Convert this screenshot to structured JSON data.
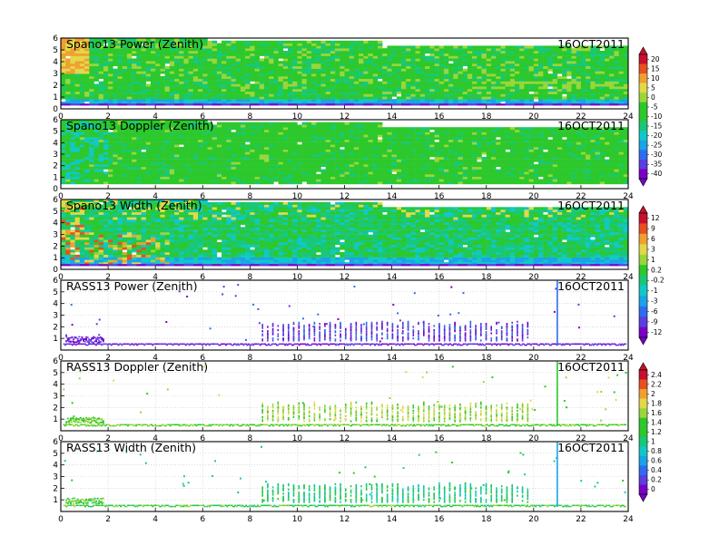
{
  "date_label": "16OCT2011",
  "palette": [
    "#7a00c8",
    "#5a3ee0",
    "#2f6df0",
    "#1aa3e8",
    "#10c8c8",
    "#18c878",
    "#2cc82c",
    "#9ad63a",
    "#e2d84a",
    "#f0a030",
    "#e85020",
    "#c8102e"
  ],
  "colorbars": [
    {
      "name": "power-doppler",
      "labels": [
        "20",
        "15",
        "10",
        "5",
        "0",
        "-5",
        "-10",
        "-15",
        "-20",
        "-25",
        "-30",
        "-35",
        "-40"
      ]
    },
    {
      "name": "width",
      "labels": [
        "12",
        "9",
        "6",
        "3",
        "1",
        "0.2",
        "-0.2",
        "-1",
        "-3",
        "-6",
        "-9",
        "-12"
      ]
    },
    {
      "name": "rass",
      "labels": [
        "2.4",
        "2.2",
        "2",
        "1.8",
        "1.6",
        "1.4",
        "1.2",
        "1",
        "0.8",
        "0.6",
        "0.4",
        "0.2",
        "0"
      ]
    }
  ],
  "chart_data": [
    {
      "type": "heatmap",
      "title": "Spano13 Power (Zenith)",
      "date": "16OCT2011",
      "x_ticks": [
        "0",
        "2",
        "4",
        "6",
        "8",
        "10",
        "12",
        "14",
        "16",
        "18",
        "20",
        "22",
        "24"
      ],
      "y_ticks": [
        "0",
        "1",
        "2",
        "3",
        "4",
        "5",
        "6"
      ],
      "xlim": [
        0,
        24
      ],
      "ylim": [
        0,
        6
      ]
    },
    {
      "type": "heatmap",
      "title": "Spano13 Doppler (Zenith)",
      "date": "16OCT2011",
      "x_ticks": [
        "0",
        "2",
        "4",
        "6",
        "8",
        "10",
        "12",
        "14",
        "16",
        "18",
        "20",
        "22",
        "24"
      ],
      "y_ticks": [
        "0",
        "1",
        "2",
        "3",
        "4",
        "5",
        "6"
      ],
      "xlim": [
        0,
        24
      ],
      "ylim": [
        0,
        6
      ]
    },
    {
      "type": "heatmap",
      "title": "Spano13 Width (Zenith)",
      "date": "16OCT2011",
      "x_ticks": [
        "0",
        "2",
        "4",
        "6",
        "8",
        "10",
        "12",
        "14",
        "16",
        "18",
        "20",
        "22",
        "24"
      ],
      "y_ticks": [
        "0",
        "1",
        "2",
        "3",
        "4",
        "5",
        "6"
      ],
      "xlim": [
        0,
        24
      ],
      "ylim": [
        0,
        6
      ]
    },
    {
      "type": "scatter",
      "title": "RASS13 Power (Zenith)",
      "date": "16OCT2011",
      "x_ticks": [
        "0",
        "2",
        "4",
        "6",
        "8",
        "10",
        "12",
        "14",
        "16",
        "18",
        "20",
        "22",
        "24"
      ],
      "y_ticks": [
        "1",
        "2",
        "3",
        "4",
        "5",
        "6"
      ],
      "xlim": [
        0,
        24
      ],
      "ylim": [
        0,
        6
      ]
    },
    {
      "type": "scatter",
      "title": "RASS13 Doppler (Zenith)",
      "date": "16OCT2011",
      "x_ticks": [
        "0",
        "2",
        "4",
        "6",
        "8",
        "10",
        "12",
        "14",
        "16",
        "18",
        "20",
        "22",
        "24"
      ],
      "y_ticks": [
        "1",
        "2",
        "3",
        "4",
        "5",
        "6"
      ],
      "xlim": [
        0,
        24
      ],
      "ylim": [
        0,
        6
      ]
    },
    {
      "type": "scatter",
      "title": "RASS13 Width (Zenith)",
      "date": "16OCT2011",
      "x_ticks": [
        "0",
        "2",
        "4",
        "6",
        "8",
        "10",
        "12",
        "14",
        "16",
        "18",
        "20",
        "22",
        "24"
      ],
      "y_ticks": [
        "1",
        "2",
        "3",
        "4",
        "5",
        "6"
      ],
      "xlim": [
        0,
        24
      ],
      "ylim": [
        0,
        6
      ]
    }
  ]
}
